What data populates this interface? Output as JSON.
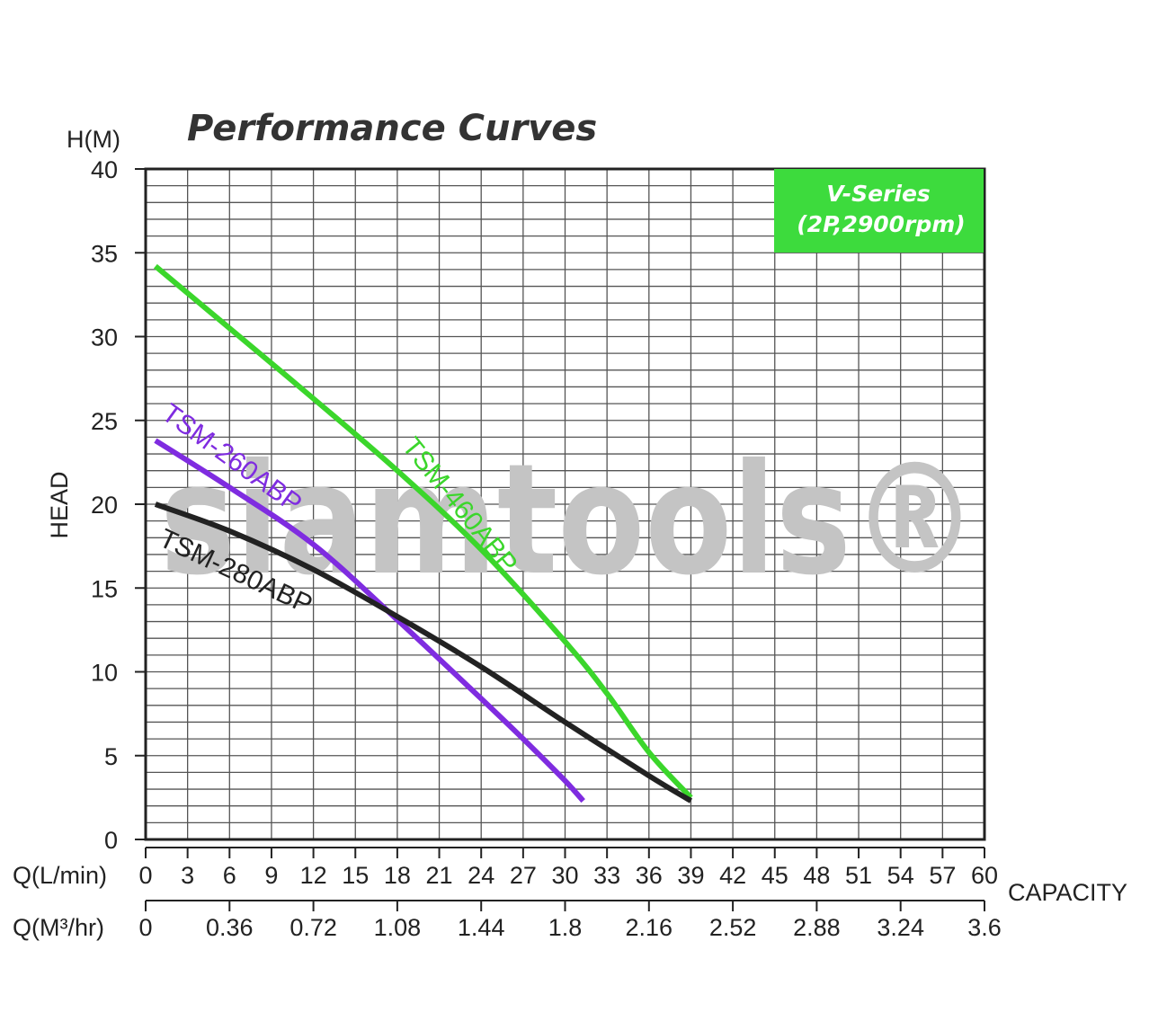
{
  "chart_data": {
    "type": "line",
    "title": "Performance Curves",
    "ylabel": "HEAD",
    "yunit_label": "H(M)",
    "xlabel": "CAPACITY",
    "x_primary_label": "Q(L/min)",
    "x_secondary_label": "Q(M³/hr)",
    "xlim": [
      0,
      60
    ],
    "ylim": [
      0,
      40
    ],
    "x_ticks": [
      "0",
      "3",
      "6",
      "9",
      "12",
      "15",
      "18",
      "21",
      "24",
      "27",
      "30",
      "33",
      "36",
      "39",
      "42",
      "45",
      "48",
      "51",
      "54",
      "57",
      "60"
    ],
    "y_ticks": [
      "0",
      "5",
      "10",
      "15",
      "20",
      "25",
      "30",
      "35",
      "40"
    ],
    "x_secondary_ticks": [
      "0",
      "0.36",
      "0.72",
      "1.08",
      "1.44",
      "1.8",
      "2.16",
      "2.52",
      "2.88",
      "3.24",
      "3.6"
    ],
    "grid": true,
    "badge": {
      "line1": "V-Series",
      "line2": "(2P,2900rpm)",
      "color": "#3ddb3d"
    },
    "watermark": "siamtools®",
    "series": [
      {
        "name": "TSM-460ABP",
        "color": "#3bd62b",
        "points": [
          [
            0.7,
            34.2
          ],
          [
            6,
            30.5
          ],
          [
            12,
            26.3
          ],
          [
            18,
            22.0
          ],
          [
            24,
            17.3
          ],
          [
            30,
            11.8
          ],
          [
            33,
            8.7
          ],
          [
            36,
            5.2
          ],
          [
            39,
            2.5
          ]
        ]
      },
      {
        "name": "TSM-260ABP",
        "color": "#7f2ce0",
        "points": [
          [
            0.7,
            23.8
          ],
          [
            6,
            21.0
          ],
          [
            12,
            17.6
          ],
          [
            18,
            13.1
          ],
          [
            24,
            8.4
          ],
          [
            27,
            6.0
          ],
          [
            30,
            3.5
          ],
          [
            31.3,
            2.3
          ]
        ]
      },
      {
        "name": "TSM-280ABP",
        "color": "#222222",
        "points": [
          [
            0.7,
            20.0
          ],
          [
            6,
            18.4
          ],
          [
            12,
            16.1
          ],
          [
            18,
            13.3
          ],
          [
            24,
            10.3
          ],
          [
            30,
            7.0
          ],
          [
            36,
            3.8
          ],
          [
            39,
            2.3
          ]
        ]
      }
    ]
  }
}
